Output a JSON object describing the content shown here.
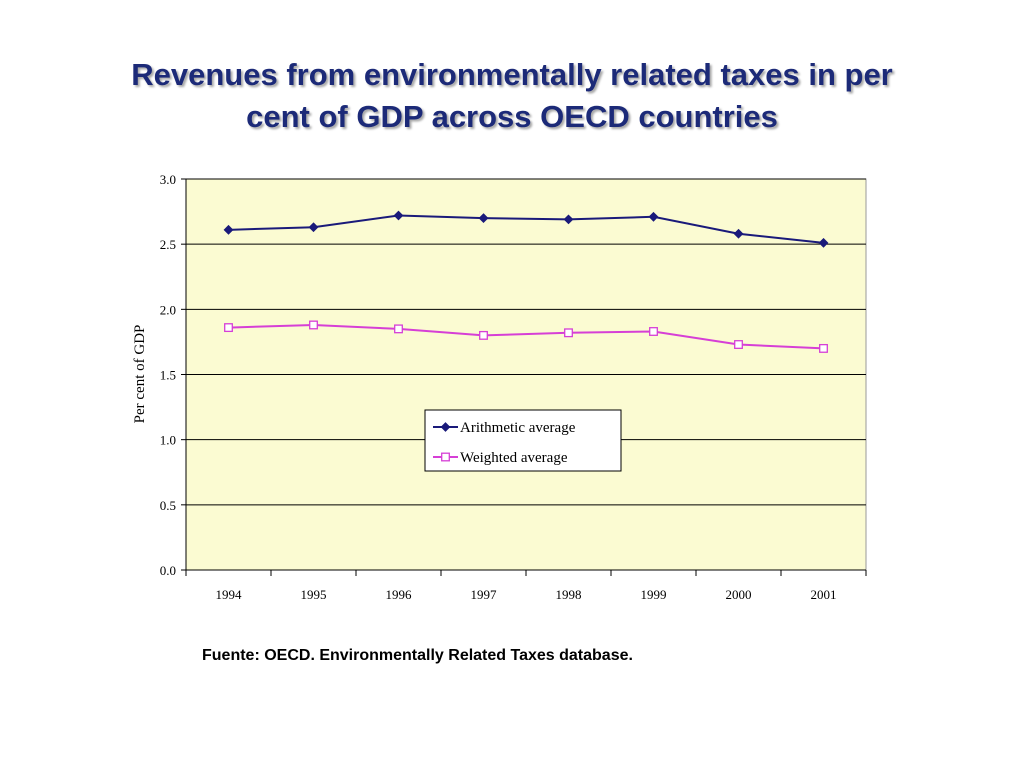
{
  "slide": {
    "title_line1": "Revenues from environmentally related taxes in per",
    "title_line2": "cent of GDP across OECD countries",
    "source": "Fuente: OECD. Environmentally Related Taxes database.",
    "title_color": "#1c2a78"
  },
  "chart_data": {
    "type": "line",
    "title": "",
    "xlabel": "",
    "ylabel": "Per cent of GDP",
    "categories": [
      "1994",
      "1995",
      "1996",
      "1997",
      "1998",
      "1999",
      "2000",
      "2001"
    ],
    "ylim": [
      0.0,
      3.0
    ],
    "yticks": [
      0.0,
      0.5,
      1.0,
      1.5,
      2.0,
      2.5,
      3.0
    ],
    "ytick_labels": [
      "0.0",
      "0.5",
      "1.0",
      "1.5",
      "2.0",
      "2.5",
      "3.0"
    ],
    "grid": "horizontal",
    "legend_position": "center",
    "plot_background": "#fbfbd2",
    "series": [
      {
        "name": "Arithmetic average",
        "values": [
          2.61,
          2.63,
          2.72,
          2.7,
          2.69,
          2.71,
          2.58,
          2.51
        ],
        "color": "#1a1a7a",
        "marker": "filled-diamond"
      },
      {
        "name": "Weighted average",
        "values": [
          1.86,
          1.88,
          1.85,
          1.8,
          1.82,
          1.83,
          1.73,
          1.7
        ],
        "color": "#d63fd6",
        "marker": "hollow-square"
      }
    ]
  }
}
